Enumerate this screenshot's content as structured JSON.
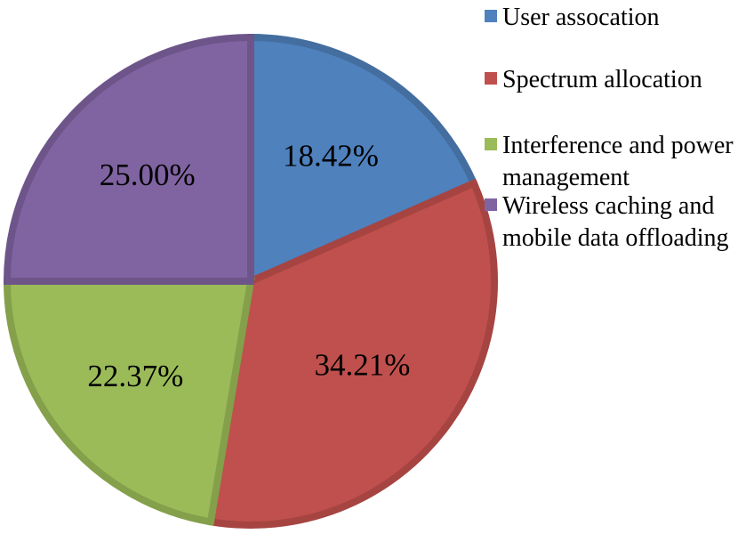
{
  "chart_data": {
    "type": "pie",
    "title": "",
    "legend_position": "right",
    "slices": [
      {
        "name": "User assocation",
        "value": 18.42,
        "label": "18.42%",
        "color": "#4f81bd",
        "border": "#436e9f"
      },
      {
        "name": "Spectrum allocation",
        "value": 34.21,
        "label": "34.21%",
        "color": "#c0504d",
        "border": "#a64442"
      },
      {
        "name": "Interference and power management",
        "value": 22.37,
        "label": "22.37%",
        "color": "#9bbb59",
        "border": "#84a04b"
      },
      {
        "name": "Wireless caching and mobile data offloading",
        "value": 25.0,
        "label": "25.00%",
        "color": "#8064a2",
        "border": "#6d558a"
      }
    ],
    "legend": [
      {
        "lines": [
          "User assocation"
        ]
      },
      {
        "lines": [
          "Spectrum allocation"
        ]
      },
      {
        "lines": [
          "Interference and power",
          "management"
        ]
      },
      {
        "lines": [
          "Wireless caching and",
          "mobile data offloading"
        ]
      }
    ]
  }
}
